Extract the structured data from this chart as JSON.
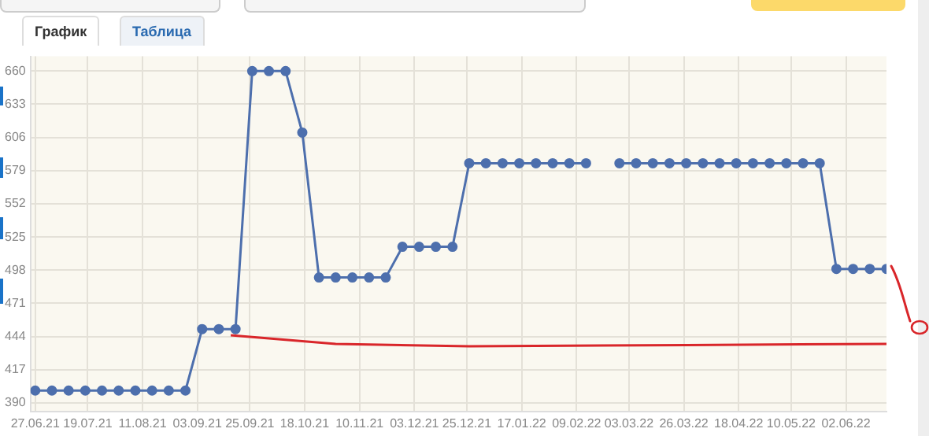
{
  "chart_data": {
    "type": "line",
    "annotations": [
      "График",
      "Таблица"
    ],
    "x": [
      "2021-06-27",
      "2021-07-04",
      "2021-07-11",
      "2021-07-18",
      "2021-07-25",
      "2021-08-01",
      "2021-08-08",
      "2021-08-15",
      "2021-08-22",
      "2021-08-29",
      "2021-09-05",
      "2021-09-12",
      "2021-09-19",
      "2021-09-26",
      "2021-10-03",
      "2021-10-10",
      "2021-10-17",
      "2021-10-24",
      "2021-10-31",
      "2021-11-07",
      "2021-11-14",
      "2021-11-21",
      "2021-11-28",
      "2021-12-05",
      "2021-12-12",
      "2021-12-19",
      "2021-12-26",
      "2022-01-02",
      "2022-01-09",
      "2022-01-16",
      "2022-01-23",
      "2022-01-30",
      "2022-02-06",
      "2022-02-13",
      "2022-02-20",
      "2022-02-27",
      "2022-03-06",
      "2022-03-13",
      "2022-03-20",
      "2022-03-27",
      "2022-04-03",
      "2022-04-10",
      "2022-04-17",
      "2022-04-24",
      "2022-05-01",
      "2022-05-08",
      "2022-05-15",
      "2022-05-22",
      "2022-05-29",
      "2022-06-05",
      "2022-06-12",
      "2022-06-19"
    ],
    "series": [
      {
        "color": "#4d6fad",
        "values": [
          400,
          400,
          400,
          400,
          400,
          400,
          400,
          400,
          400,
          400,
          450,
          450,
          450,
          660,
          660,
          660,
          610,
          492,
          492,
          492,
          492,
          492,
          517,
          517,
          517,
          517,
          585,
          585,
          585,
          585,
          585,
          585,
          585,
          585,
          null,
          585,
          585,
          585,
          585,
          585,
          585,
          585,
          585,
          585,
          585,
          585,
          585,
          585,
          499,
          499,
          499,
          499
        ]
      },
      {
        "type": "line",
        "color": "#d9262a",
        "marker": "none",
        "x": [
          "2021-09-17",
          "2021-10-31",
          "2021-12-26",
          "2022-03-27",
          "2022-06-19"
        ],
        "values": [
          445,
          438,
          436,
          437,
          438
        ]
      }
    ],
    "xlim": [
      "2021-06-25",
      "2022-06-19"
    ],
    "xticks": [
      {
        "value": "2021-06-27",
        "label": "27.06.21"
      },
      {
        "value": "2021-07-19",
        "label": "19.07.21"
      },
      {
        "value": "2021-08-11",
        "label": "11.08.21"
      },
      {
        "value": "2021-09-03",
        "label": "03.09.21"
      },
      {
        "value": "2021-09-25",
        "label": "25.09.21"
      },
      {
        "value": "2021-10-18",
        "label": "18.10.21"
      },
      {
        "value": "2021-11-10",
        "label": "10.11.21"
      },
      {
        "value": "2021-12-03",
        "label": "03.12.21"
      },
      {
        "value": "2021-12-25",
        "label": "25.12.21"
      },
      {
        "value": "2022-01-17",
        "label": "17.01.22"
      },
      {
        "value": "2022-02-09",
        "label": "09.02.22"
      },
      {
        "value": "2022-03-03",
        "label": "03.03.22"
      },
      {
        "value": "2022-03-26",
        "label": "26.03.22"
      },
      {
        "value": "2022-04-18",
        "label": "18.04.22"
      },
      {
        "value": "2022-05-10",
        "label": "10.05.22"
      },
      {
        "value": "2022-06-02",
        "label": "02.06.22"
      }
    ],
    "ylim": [
      383,
      672
    ],
    "yticks": [
      390,
      417,
      444,
      471,
      498,
      525,
      552,
      579,
      606,
      633,
      660
    ],
    "grid": true,
    "legend": false,
    "marker": "circle",
    "line_style": "solid"
  }
}
